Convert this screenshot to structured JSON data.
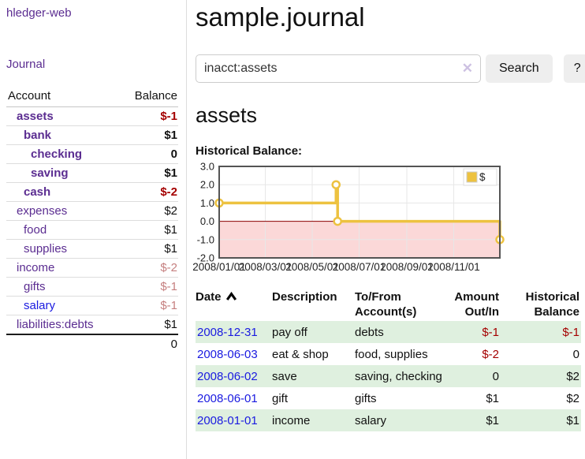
{
  "app": {
    "brand": "hledger-web"
  },
  "theme": {
    "link_purple": "#5b2d91",
    "link_blue": "#1a1ae0",
    "negative_red": "#a40000",
    "negative_soft_red": "#c57f7f",
    "row_stripe_green": "#dff0df",
    "button_gray": "#eeeeee"
  },
  "sidebar": {
    "journal_link": "Journal",
    "accounts": {
      "header_account": "Account",
      "header_balance": "Balance",
      "rows": [
        {
          "name": "assets",
          "balance": "$-1",
          "indent": 1,
          "emphasis": true,
          "balance_style": "neg-strong",
          "link_style": ""
        },
        {
          "name": "bank",
          "balance": "$1",
          "indent": 2,
          "emphasis": true,
          "balance_style": "",
          "link_style": ""
        },
        {
          "name": "checking",
          "balance": "0",
          "indent": 3,
          "emphasis": true,
          "balance_style": "",
          "link_style": ""
        },
        {
          "name": "saving",
          "balance": "$1",
          "indent": 3,
          "emphasis": true,
          "balance_style": "",
          "link_style": ""
        },
        {
          "name": "cash",
          "balance": "$-2",
          "indent": 2,
          "emphasis": true,
          "balance_style": "neg-strong",
          "link_style": ""
        },
        {
          "name": "expenses",
          "balance": "$2",
          "indent": 1,
          "emphasis": false,
          "balance_style": "",
          "link_style": ""
        },
        {
          "name": "food",
          "balance": "$1",
          "indent": 2,
          "emphasis": false,
          "balance_style": "",
          "link_style": ""
        },
        {
          "name": "supplies",
          "balance": "$1",
          "indent": 2,
          "emphasis": false,
          "balance_style": "",
          "link_style": ""
        },
        {
          "name": "income",
          "balance": "$-2",
          "indent": 1,
          "emphasis": false,
          "balance_style": "neg-soft",
          "link_style": ""
        },
        {
          "name": "gifts",
          "balance": "$-1",
          "indent": 2,
          "emphasis": false,
          "balance_style": "neg-soft",
          "link_style": ""
        },
        {
          "name": "salary",
          "balance": "$-1",
          "indent": 2,
          "emphasis": false,
          "balance_style": "neg-soft",
          "link_style": "blue"
        },
        {
          "name": "liabilities:debts",
          "balance": "$1",
          "indent": 1,
          "emphasis": false,
          "balance_style": "",
          "link_style": ""
        }
      ],
      "total": "0"
    }
  },
  "main": {
    "title": "sample.journal",
    "search": {
      "value": "inacct:assets",
      "clear_icon": "✕",
      "search_button": "Search",
      "help_button": "?"
    },
    "account_heading": "assets",
    "section_label": "Historical Balance:"
  },
  "chart_data": {
    "type": "line",
    "step": true,
    "title": "Historical Balance",
    "x_range": [
      "2008/01/01",
      "2008/12/31"
    ],
    "ylim": [
      -2.0,
      3.0
    ],
    "ytick_values": [
      3.0,
      2.0,
      1.0,
      0.0,
      -1.0,
      -2.0
    ],
    "xticks": [
      "2008/01/01",
      "2008/03/01",
      "2008/05/01",
      "2008/07/01",
      "2008/09/01",
      "2008/11/01"
    ],
    "series": [
      {
        "name": "$",
        "color": "#edc240",
        "points": [
          {
            "x": "2008/01/01",
            "y": 1.0
          },
          {
            "x": "2008/06/01",
            "y": 2.0
          },
          {
            "x": "2008/06/03",
            "y": 0.0
          },
          {
            "x": "2008/12/31",
            "y": -1.0
          }
        ]
      }
    ],
    "legend": {
      "label": "$",
      "position": "top-right"
    },
    "colors": {
      "negative_fill": "#fbd8d8",
      "zero_line": "#8b0000",
      "grid": "#e7e7e7",
      "border": "#545454"
    }
  },
  "register_table": {
    "headers": [
      {
        "lines": [
          "Date"
        ],
        "align": "left",
        "sortable": true,
        "sort_icon": "chevron-up"
      },
      {
        "lines": [
          "Description"
        ],
        "align": "left",
        "sortable": false
      },
      {
        "lines": [
          "To/From",
          "Account(s)"
        ],
        "align": "left",
        "sortable": false
      },
      {
        "lines": [
          "Amount",
          "Out/In"
        ],
        "align": "right",
        "sortable": false
      },
      {
        "lines": [
          "Historical",
          "Balance"
        ],
        "align": "right",
        "sortable": false
      }
    ],
    "rows": [
      {
        "date": "2008-12-31",
        "description": "pay off",
        "accounts": "debts",
        "amount": "$-1",
        "balance": "$-1",
        "amount_negative": true,
        "balance_negative": true,
        "striped": true
      },
      {
        "date": "2008-06-03",
        "description": "eat & shop",
        "accounts": "food, supplies",
        "amount": "$-2",
        "balance": "0",
        "amount_negative": true,
        "balance_negative": false,
        "striped": false
      },
      {
        "date": "2008-06-02",
        "description": "save",
        "accounts": "saving, checking",
        "amount": "0",
        "balance": "$2",
        "amount_negative": false,
        "balance_negative": false,
        "striped": true
      },
      {
        "date": "2008-06-01",
        "description": "gift",
        "accounts": "gifts",
        "amount": "$1",
        "balance": "$2",
        "amount_negative": false,
        "balance_negative": false,
        "striped": false
      },
      {
        "date": "2008-01-01",
        "description": "income",
        "accounts": "salary",
        "amount": "$1",
        "balance": "$1",
        "amount_negative": false,
        "balance_negative": false,
        "striped": true
      }
    ]
  }
}
